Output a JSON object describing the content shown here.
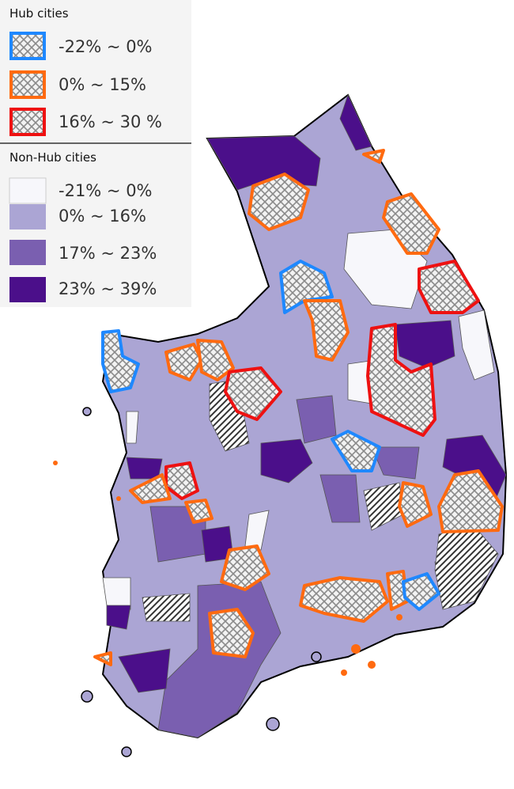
{
  "legend": {
    "hub_title": "Hub cities",
    "hub_items": [
      "-22% ~ 0%",
      "0% ~ 15%",
      "16% ~ 30 %"
    ],
    "nonhub_title": "Non-Hub cities",
    "nonhub_items": [
      "-21% ~ 0%",
      "0% ~ 16%",
      "17% ~ 23%",
      "23% ~ 39%"
    ]
  }
}
